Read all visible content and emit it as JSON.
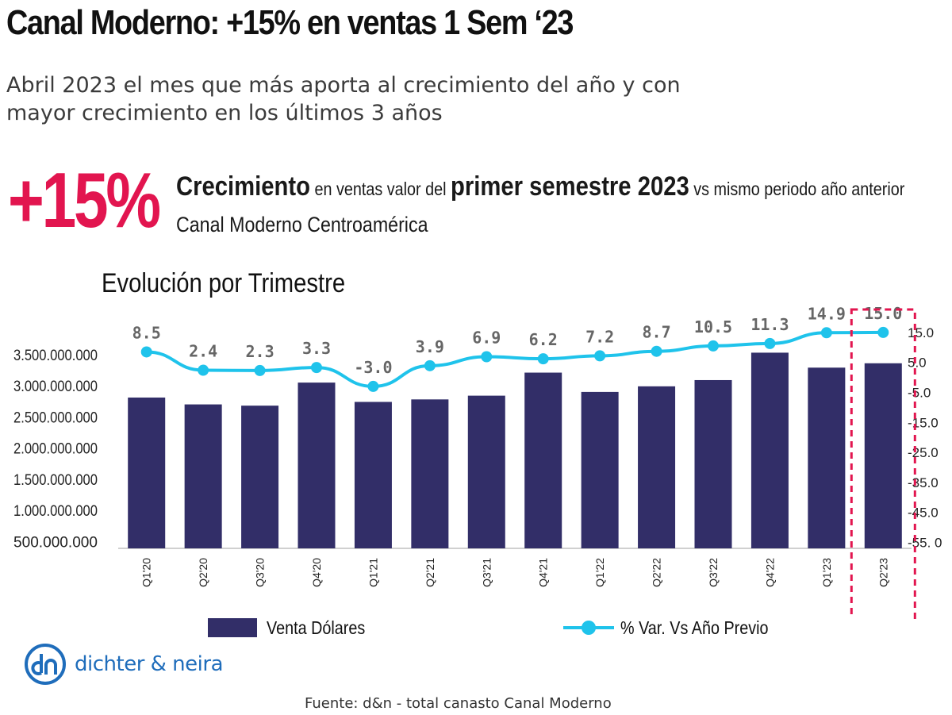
{
  "header": {
    "title": "Canal Moderno: +15% en ventas 1 Sem ‘23",
    "subtitle": "Abril 2023 el mes que más aporta al crecimiento del año y con mayor crecimiento en los últimos 3 años"
  },
  "highlight": {
    "value": "+15%",
    "part1": "Crecimiento",
    "part2": " en ventas valor del ",
    "part3": "primer semestre 2023",
    "part4": " vs mismo periodo año anterior",
    "line2": "Canal Moderno Centroamérica"
  },
  "chart_title": "Evolución por Trimestre",
  "legend": {
    "bars": "Venta Dólares",
    "line": "% Var. Vs Año Previo"
  },
  "logo": {
    "text": "dichter & neira"
  },
  "source": "Fuente: d&n - total canasto Canal Moderno",
  "colors": {
    "bar": "#322e68",
    "line": "#1fc3eb",
    "accent": "#e2154f",
    "logo": "#1f6dbb"
  },
  "chart_data": {
    "type": "bar",
    "categories": [
      "Q1'20",
      "Q2'20",
      "Q3'20",
      "Q4'20",
      "Q1'21",
      "Q2'21",
      "Q3'21",
      "Q4'21",
      "Q1'22",
      "Q2'22",
      "Q3'22",
      "Q4'22",
      "Q1'23",
      "Q2'23"
    ],
    "series": [
      {
        "name": "Venta Dólares",
        "type": "bar",
        "axis": "left",
        "values": [
          2810000000,
          2700000000,
          2680000000,
          3050000000,
          2740000000,
          2780000000,
          2840000000,
          3210000000,
          2900000000,
          2990000000,
          3090000000,
          3530000000,
          3290000000,
          3360000000
        ]
      },
      {
        "name": "% Var. Vs Año Previo",
        "type": "line",
        "axis": "right",
        "values": [
          8.5,
          2.4,
          2.3,
          3.3,
          -3.0,
          3.9,
          6.9,
          6.2,
          7.2,
          8.7,
          10.5,
          11.3,
          14.9,
          15.0
        ],
        "labels": [
          "8.5",
          "2.4",
          "2.3",
          "3.3",
          "-3.0",
          "3.9",
          "6.9",
          "6.2",
          "7.2",
          "8.7",
          "10.5",
          "11.3",
          "14.9",
          "15.0"
        ]
      }
    ],
    "y_left_ticks": [
      "3.500.000.000",
      "3.000.000.000",
      "2.500.000.000",
      "2.000.000.000",
      "1.500.000.000",
      "1.000.000.000",
      "500.000.000"
    ],
    "y_left_tick_values": [
      3500000000,
      3000000000,
      2500000000,
      2000000000,
      1500000000,
      1000000000,
      500000000
    ],
    "y_right_ticks": [
      "15.0",
      "5.0",
      "-5.0",
      "-15.0",
      "-25.0",
      "-35.0",
      "-45.0",
      "-55. 0"
    ],
    "y_right_tick_values": [
      15,
      5,
      -5,
      -15,
      -25,
      -35,
      -45,
      -55
    ],
    "y_left_range": [
      390000000,
      3650000000
    ],
    "y_right_range": [
      -57,
      20
    ],
    "highlighted_category": "Q2'23"
  }
}
